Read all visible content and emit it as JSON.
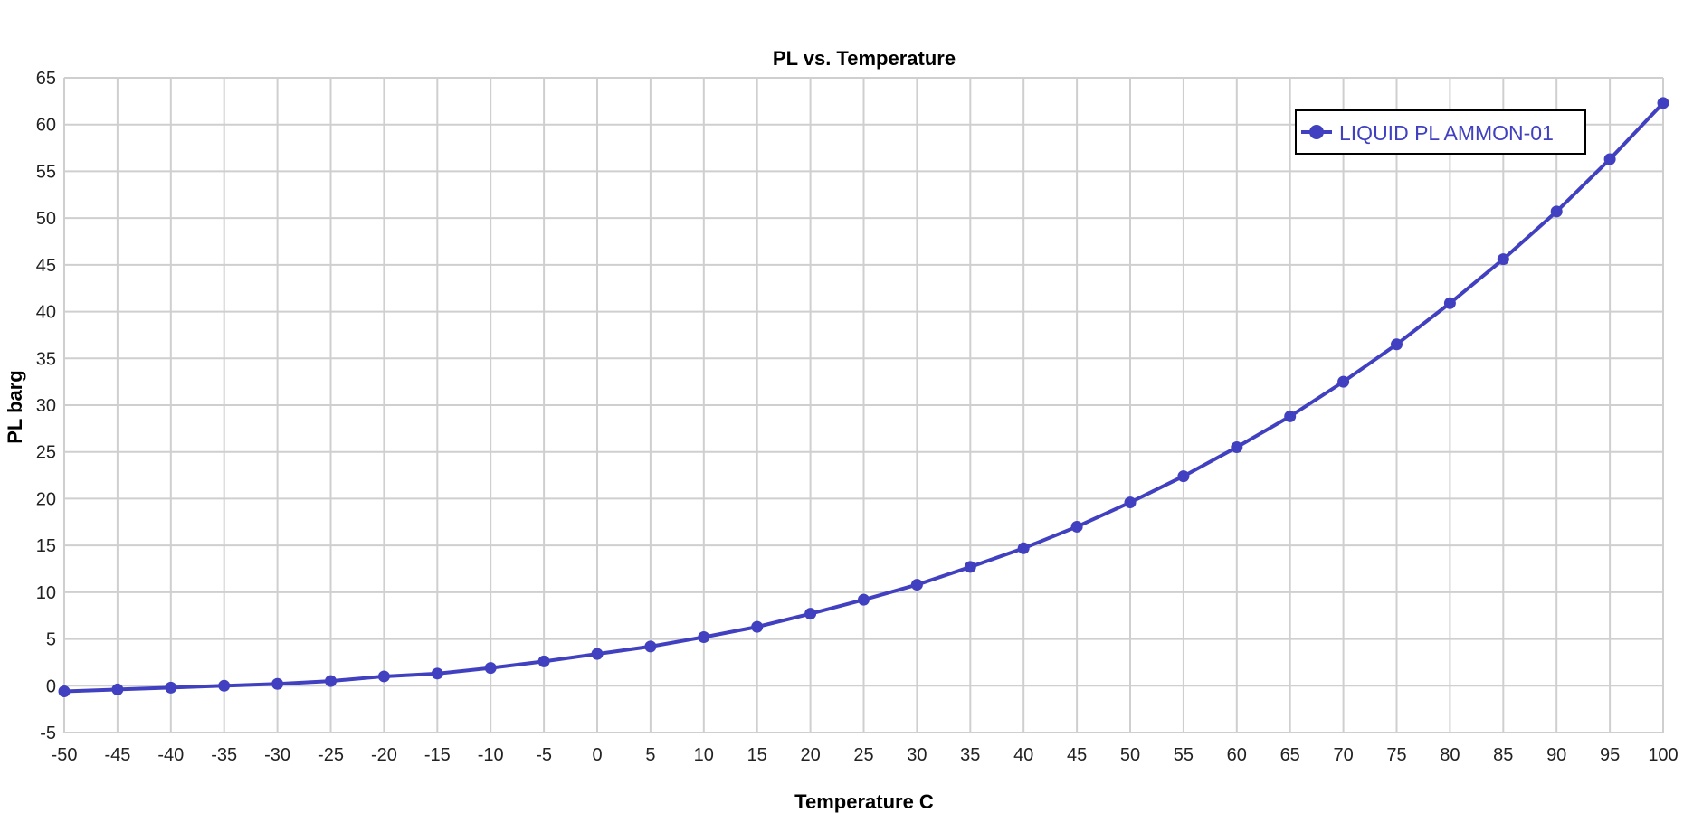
{
  "chart_data": {
    "type": "line",
    "title": "PL vs. Temperature",
    "xlabel": "Temperature C",
    "ylabel": "PL barg",
    "xlim": [
      -50,
      100
    ],
    "ylim": [
      -5,
      65
    ],
    "x_ticks": [
      -50,
      -45,
      -40,
      -35,
      -30,
      -25,
      -20,
      -15,
      -10,
      -5,
      0,
      5,
      10,
      15,
      20,
      25,
      30,
      35,
      40,
      45,
      50,
      55,
      60,
      65,
      70,
      75,
      80,
      85,
      90,
      95,
      100
    ],
    "y_ticks": [
      -5,
      0,
      5,
      10,
      15,
      20,
      25,
      30,
      35,
      40,
      45,
      50,
      55,
      60,
      65
    ],
    "grid": true,
    "legend_position": "top-right",
    "x": [
      -50,
      -45,
      -40,
      -35,
      -30,
      -25,
      -20,
      -15,
      -10,
      -5,
      0,
      5,
      10,
      15,
      20,
      25,
      30,
      35,
      40,
      45,
      50,
      55,
      60,
      65,
      70,
      75,
      80,
      85,
      90,
      95,
      100
    ],
    "series": [
      {
        "name": "LIQUID PL AMMON-01",
        "color": "#4040c0",
        "values": [
          -0.6,
          -0.4,
          -0.2,
          0.0,
          0.2,
          0.5,
          1.0,
          1.3,
          1.9,
          2.6,
          3.4,
          4.2,
          5.2,
          6.3,
          7.7,
          9.2,
          10.8,
          12.7,
          14.7,
          17.0,
          19.6,
          22.4,
          25.5,
          28.8,
          32.5,
          36.5,
          40.9,
          45.6,
          50.7,
          56.3,
          62.3
        ]
      }
    ]
  }
}
